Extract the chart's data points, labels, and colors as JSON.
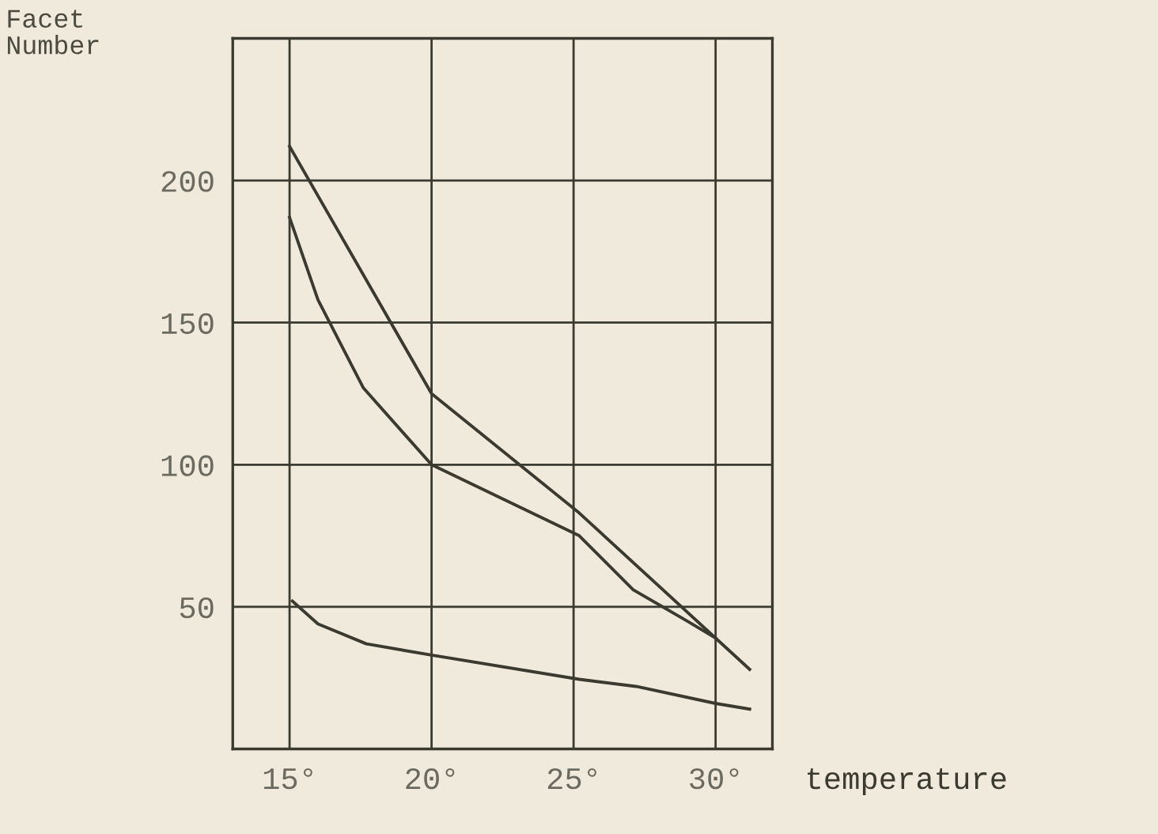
{
  "chart_data": {
    "type": "line",
    "xlabel": "temperature",
    "ylabel": "Facet\nNumber",
    "xlim": [
      13,
      32
    ],
    "ylim": [
      0,
      250
    ],
    "xticks": [
      {
        "value": 15,
        "label": "15°"
      },
      {
        "value": 20,
        "label": "20°"
      },
      {
        "value": 25,
        "label": "25°"
      },
      {
        "value": 30,
        "label": "30°"
      }
    ],
    "yticks": [
      50,
      100,
      150,
      200
    ],
    "grid": true,
    "marker": "none",
    "line_style": "solid",
    "series": [
      {
        "color": "#3a3a30",
        "x": [
          15,
          20,
          25.2,
          31.2
        ],
        "values": [
          212,
          125,
          83,
          28
        ]
      },
      {
        "color": "#3a3a30",
        "x": [
          15,
          16,
          17.6,
          20,
          25.2,
          27.1,
          29,
          30
        ],
        "values": [
          187,
          158,
          127,
          100,
          75,
          56,
          45,
          39
        ]
      },
      {
        "color": "#3a3a30",
        "x": [
          15.1,
          16,
          17.7,
          20,
          25.2,
          27.2,
          30,
          31.2
        ],
        "values": [
          52,
          44,
          37,
          33,
          24.5,
          22,
          16,
          14
        ]
      }
    ]
  }
}
